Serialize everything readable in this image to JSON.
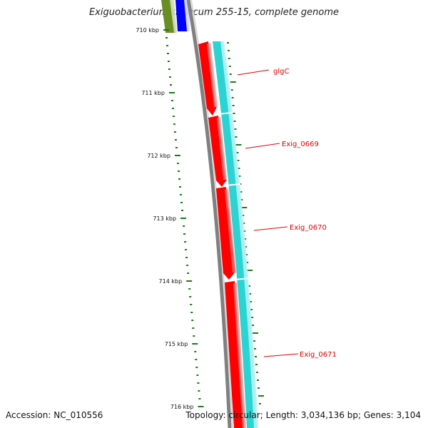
{
  "title": "Exiguobacterium sibiricum 255-15, complete genome",
  "footer": {
    "accession": "Accession: NC_010556",
    "summary": "Topology: circular; Length: 3,034,136 bp; Genes: 3,104"
  },
  "axis": {
    "ticks": [
      "710 kbp",
      "711 kbp",
      "712 kbp",
      "713 kbp",
      "714 kbp",
      "715 kbp",
      "716 kbp"
    ],
    "tick_color": "#1a7a1a"
  },
  "genes": [
    {
      "label": "glgC",
      "strand": "+"
    },
    {
      "label": "Exig_0669",
      "strand": "+"
    },
    {
      "label": "Exig_0670",
      "strand": "+"
    },
    {
      "label": "Exig_0671",
      "strand": "+"
    }
  ],
  "colors": {
    "cds_red": "#ff0000",
    "cds_cyan": "#2bd3d3",
    "backbone": "#808080",
    "label_red": "#e00000",
    "olive": "#6b8e23",
    "blue": "#0000ff"
  }
}
